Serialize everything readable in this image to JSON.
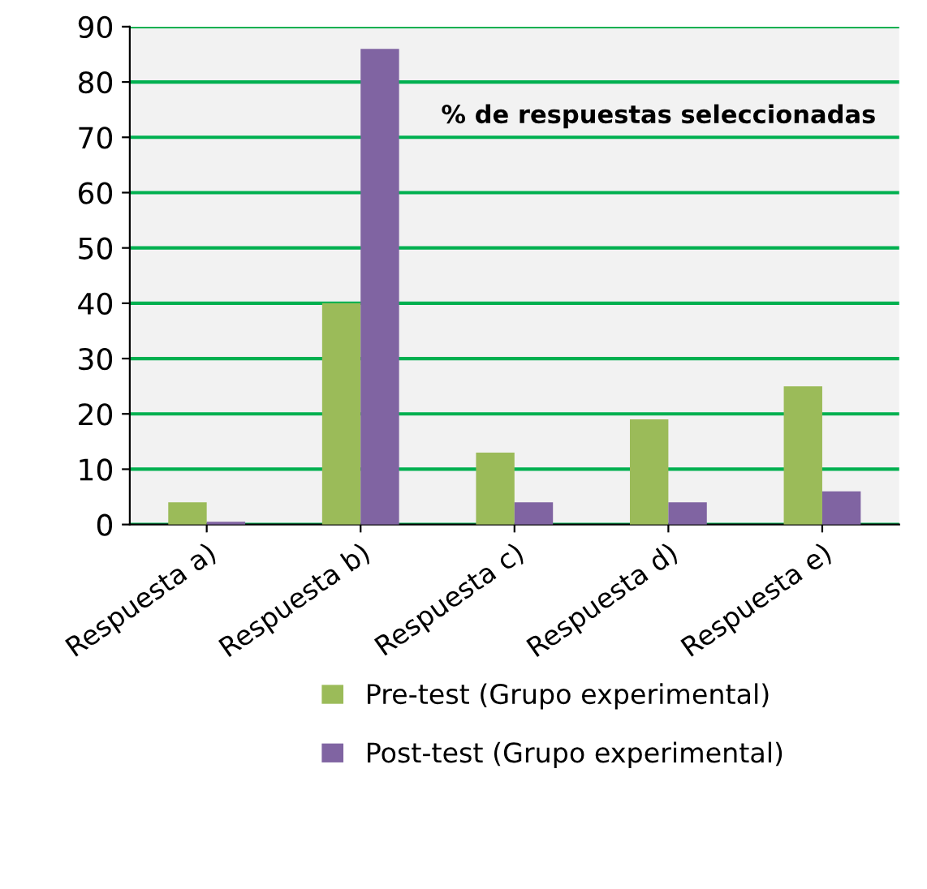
{
  "chart_data": {
    "type": "bar",
    "title": "% de respuestas seleccionadas",
    "categories": [
      "Respuesta a)",
      "Respuesta b)",
      "Respuesta c)",
      "Respuesta d)",
      "Respuesta e)"
    ],
    "series": [
      {
        "name": "Pre-test (Grupo experimental)",
        "color": "#9bbb59",
        "values": [
          4,
          40,
          13,
          19,
          25
        ]
      },
      {
        "name": "Post-test (Grupo experimental)",
        "color": "#8064a2",
        "values": [
          0.5,
          86,
          4,
          4,
          6
        ]
      }
    ],
    "ylim": [
      0,
      90
    ],
    "yticks": [
      0,
      10,
      20,
      30,
      40,
      50,
      60,
      70,
      80,
      90
    ],
    "grid": "y",
    "legend": "bottom"
  }
}
